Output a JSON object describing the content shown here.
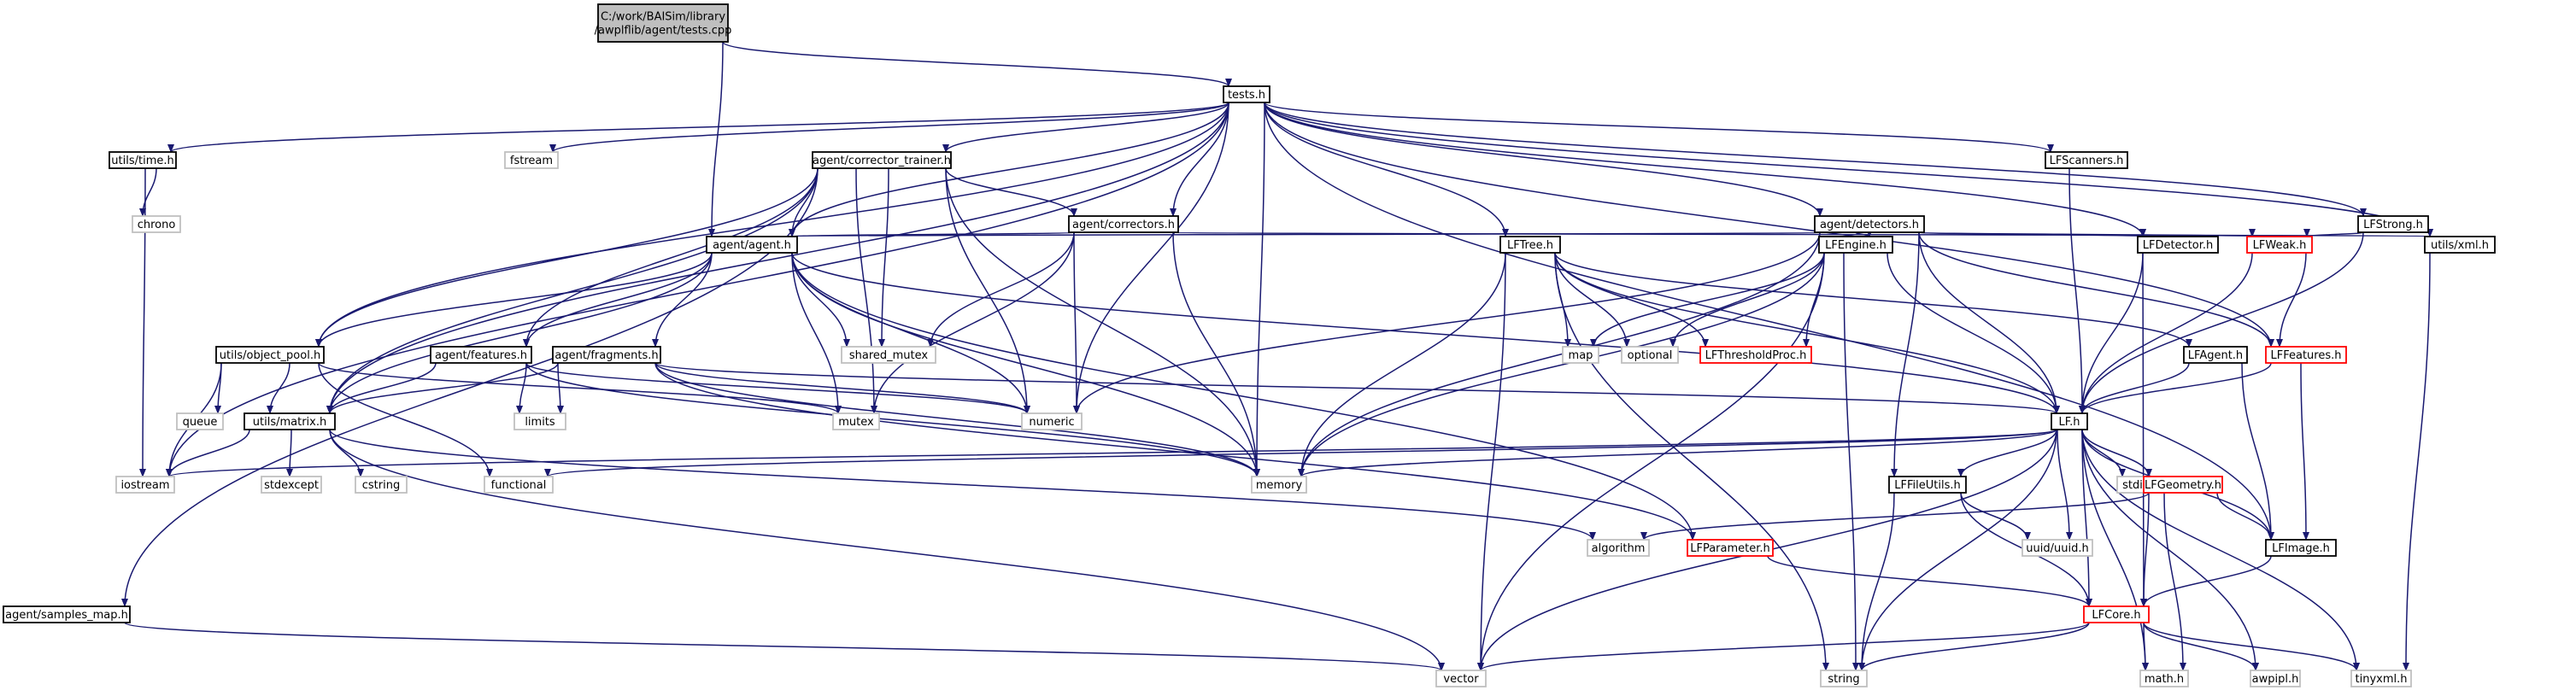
{
  "colors": {
    "edge": "#191970",
    "node_border": "#000000",
    "missing_border": "#c0c0c0",
    "incomplete_border": "#ff0000",
    "root_fill": "#bfbfbf",
    "fill": "#ffffff",
    "text": "#000000"
  },
  "nodes": [
    {
      "id": "root",
      "lines": [
        "C:/work/BAISim/library",
        "/awplflib/agent/tests.cpp"
      ],
      "style": "root"
    },
    {
      "id": "tests_h",
      "lines": [
        "tests.h"
      ],
      "style": "normal"
    },
    {
      "id": "utils_time",
      "lines": [
        "utils/time.h"
      ],
      "style": "normal"
    },
    {
      "id": "fstream",
      "lines": [
        "fstream"
      ],
      "style": "missing"
    },
    {
      "id": "corrector_trainer",
      "lines": [
        "agent/corrector_trainer.h"
      ],
      "style": "normal"
    },
    {
      "id": "lfscanners",
      "lines": [
        "LFScanners.h"
      ],
      "style": "normal"
    },
    {
      "id": "lfstrong",
      "lines": [
        "LFStrong.h"
      ],
      "style": "normal"
    },
    {
      "id": "chrono",
      "lines": [
        "chrono"
      ],
      "style": "missing"
    },
    {
      "id": "correctors",
      "lines": [
        "agent/correctors.h"
      ],
      "style": "normal"
    },
    {
      "id": "detectors",
      "lines": [
        "agent/detectors.h"
      ],
      "style": "normal"
    },
    {
      "id": "agent_h",
      "lines": [
        "agent/agent.h"
      ],
      "style": "normal"
    },
    {
      "id": "lftree",
      "lines": [
        "LFTree.h"
      ],
      "style": "normal"
    },
    {
      "id": "lfengine",
      "lines": [
        "LFEngine.h"
      ],
      "style": "normal"
    },
    {
      "id": "lfdetector",
      "lines": [
        "LFDetector.h"
      ],
      "style": "normal"
    },
    {
      "id": "lfweak",
      "lines": [
        "LFWeak.h"
      ],
      "style": "incomplete"
    },
    {
      "id": "utils_xml",
      "lines": [
        "utils/xml.h"
      ],
      "style": "normal"
    },
    {
      "id": "object_pool",
      "lines": [
        "utils/object_pool.h"
      ],
      "style": "normal"
    },
    {
      "id": "shared_mutex",
      "lines": [
        "shared_mutex"
      ],
      "style": "missing"
    },
    {
      "id": "map",
      "lines": [
        "map"
      ],
      "style": "missing"
    },
    {
      "id": "optional",
      "lines": [
        "optional"
      ],
      "style": "missing"
    },
    {
      "id": "lfthresholdproc",
      "lines": [
        "LFThresholdProc.h"
      ],
      "style": "incomplete"
    },
    {
      "id": "features",
      "lines": [
        "agent/features.h"
      ],
      "style": "normal"
    },
    {
      "id": "fragments",
      "lines": [
        "agent/fragments.h"
      ],
      "style": "normal"
    },
    {
      "id": "lfagent",
      "lines": [
        "LFAgent.h"
      ],
      "style": "normal"
    },
    {
      "id": "lffeatures",
      "lines": [
        "LFFeatures.h"
      ],
      "style": "incomplete"
    },
    {
      "id": "queue",
      "lines": [
        "queue"
      ],
      "style": "missing"
    },
    {
      "id": "matrix",
      "lines": [
        "utils/matrix.h"
      ],
      "style": "normal"
    },
    {
      "id": "limits",
      "lines": [
        "limits"
      ],
      "style": "missing"
    },
    {
      "id": "mutex",
      "lines": [
        "mutex"
      ],
      "style": "missing"
    },
    {
      "id": "numeric",
      "lines": [
        "numeric"
      ],
      "style": "missing"
    },
    {
      "id": "lf_h",
      "lines": [
        "LF.h"
      ],
      "style": "normal"
    },
    {
      "id": "iostream",
      "lines": [
        "iostream"
      ],
      "style": "missing"
    },
    {
      "id": "functional",
      "lines": [
        "functional"
      ],
      "style": "missing"
    },
    {
      "id": "memory",
      "lines": [
        "memory"
      ],
      "style": "missing"
    },
    {
      "id": "stdexcept",
      "lines": [
        "stdexcept"
      ],
      "style": "missing"
    },
    {
      "id": "cstring",
      "lines": [
        "cstring"
      ],
      "style": "missing"
    },
    {
      "id": "lffileutils",
      "lines": [
        "LFFileUtils.h"
      ],
      "style": "normal"
    },
    {
      "id": "stdio",
      "lines": [
        "stdio.h"
      ],
      "style": "missing"
    },
    {
      "id": "lfgeometry",
      "lines": [
        "LFGeometry.h"
      ],
      "style": "incomplete"
    },
    {
      "id": "algorithm",
      "lines": [
        "algorithm"
      ],
      "style": "missing"
    },
    {
      "id": "lfparameter",
      "lines": [
        "LFParameter.h"
      ],
      "style": "incomplete"
    },
    {
      "id": "uuid",
      "lines": [
        "uuid/uuid.h"
      ],
      "style": "missing"
    },
    {
      "id": "lfimage",
      "lines": [
        "LFImage.h"
      ],
      "style": "normal"
    },
    {
      "id": "samples_map",
      "lines": [
        "agent/samples_map.h"
      ],
      "style": "normal"
    },
    {
      "id": "lfcore",
      "lines": [
        "LFCore.h"
      ],
      "style": "incomplete"
    },
    {
      "id": "vector",
      "lines": [
        "vector"
      ],
      "style": "missing"
    },
    {
      "id": "string",
      "lines": [
        "string"
      ],
      "style": "missing"
    },
    {
      "id": "math",
      "lines": [
        "math.h"
      ],
      "style": "missing"
    },
    {
      "id": "awpipl",
      "lines": [
        "awpipl.h"
      ],
      "style": "missing"
    },
    {
      "id": "tinyxml",
      "lines": [
        "tinyxml.h"
      ],
      "style": "missing"
    }
  ],
  "edges": [
    [
      "root",
      "tests_h"
    ],
    [
      "root",
      "agent_h"
    ],
    [
      "tests_h",
      "utils_time"
    ],
    [
      "tests_h",
      "fstream"
    ],
    [
      "tests_h",
      "corrector_trainer"
    ],
    [
      "tests_h",
      "correctors"
    ],
    [
      "tests_h",
      "detectors"
    ],
    [
      "tests_h",
      "agent_h"
    ],
    [
      "tests_h",
      "lftree"
    ],
    [
      "tests_h",
      "lfscanners"
    ],
    [
      "tests_h",
      "lfstrong"
    ],
    [
      "tests_h",
      "lfdetector"
    ],
    [
      "tests_h",
      "utils_xml"
    ],
    [
      "tests_h",
      "object_pool"
    ],
    [
      "tests_h",
      "matrix"
    ],
    [
      "tests_h",
      "iostream"
    ],
    [
      "tests_h",
      "numeric"
    ],
    [
      "tests_h",
      "memory"
    ],
    [
      "tests_h",
      "lfimage"
    ],
    [
      "tests_h",
      "lffeatures"
    ],
    [
      "utils_time",
      "chrono"
    ],
    [
      "utils_time",
      "iostream"
    ],
    [
      "corrector_trainer",
      "correctors"
    ],
    [
      "corrector_trainer",
      "agent_h"
    ],
    [
      "corrector_trainer",
      "features"
    ],
    [
      "corrector_trainer",
      "shared_mutex"
    ],
    [
      "corrector_trainer",
      "mutex"
    ],
    [
      "corrector_trainer",
      "numeric"
    ],
    [
      "corrector_trainer",
      "memory"
    ],
    [
      "corrector_trainer",
      "object_pool"
    ],
    [
      "corrector_trainer",
      "matrix"
    ],
    [
      "corrector_trainer",
      "samples_map"
    ],
    [
      "correctors",
      "agent_h"
    ],
    [
      "correctors",
      "shared_mutex"
    ],
    [
      "correctors",
      "mutex"
    ],
    [
      "correctors",
      "numeric"
    ],
    [
      "correctors",
      "memory"
    ],
    [
      "correctors",
      "utils_xml"
    ],
    [
      "detectors",
      "agent_h"
    ],
    [
      "detectors",
      "lfengine"
    ],
    [
      "detectors",
      "lfdetector"
    ],
    [
      "detectors",
      "lfweak"
    ],
    [
      "detectors",
      "lf_h"
    ],
    [
      "detectors",
      "lffileutils"
    ],
    [
      "detectors",
      "memory"
    ],
    [
      "detectors",
      "numeric"
    ],
    [
      "detectors",
      "lffeatures"
    ],
    [
      "agent_h",
      "object_pool"
    ],
    [
      "agent_h",
      "features"
    ],
    [
      "agent_h",
      "fragments"
    ],
    [
      "agent_h",
      "shared_mutex"
    ],
    [
      "agent_h",
      "mutex"
    ],
    [
      "agent_h",
      "numeric"
    ],
    [
      "agent_h",
      "memory"
    ],
    [
      "agent_h",
      "matrix"
    ],
    [
      "agent_h",
      "lf_h"
    ],
    [
      "agent_h",
      "lfparameter"
    ],
    [
      "lftree",
      "map"
    ],
    [
      "lftree",
      "optional"
    ],
    [
      "lftree",
      "lfthresholdproc"
    ],
    [
      "lftree",
      "lfagent"
    ],
    [
      "lftree",
      "lf_h"
    ],
    [
      "lftree",
      "memory"
    ],
    [
      "lftree",
      "vector"
    ],
    [
      "lftree",
      "string"
    ],
    [
      "lfengine",
      "map"
    ],
    [
      "lfengine",
      "optional"
    ],
    [
      "lfengine",
      "lfthresholdproc"
    ],
    [
      "lfengine",
      "lf_h"
    ],
    [
      "lfengine",
      "memory"
    ],
    [
      "lfengine",
      "vector"
    ],
    [
      "lfengine",
      "string"
    ],
    [
      "lfscanners",
      "lf_h"
    ],
    [
      "lfstrong",
      "lfweak"
    ],
    [
      "lfstrong",
      "lf_h"
    ],
    [
      "lfdetector",
      "lf_h"
    ],
    [
      "lfdetector",
      "lfcore"
    ],
    [
      "lfweak",
      "lffeatures"
    ],
    [
      "lfweak",
      "lf_h"
    ],
    [
      "utils_xml",
      "tinyxml"
    ],
    [
      "object_pool",
      "queue"
    ],
    [
      "object_pool",
      "iostream"
    ],
    [
      "object_pool",
      "mutex"
    ],
    [
      "object_pool",
      "functional"
    ],
    [
      "object_pool",
      "matrix"
    ],
    [
      "features",
      "limits"
    ],
    [
      "features",
      "matrix"
    ],
    [
      "features",
      "numeric"
    ],
    [
      "features",
      "memory"
    ],
    [
      "fragments",
      "limits"
    ],
    [
      "fragments",
      "matrix"
    ],
    [
      "fragments",
      "numeric"
    ],
    [
      "fragments",
      "memory"
    ],
    [
      "fragments",
      "lf_h"
    ],
    [
      "fragments",
      "lfparameter"
    ],
    [
      "lfagent",
      "lf_h"
    ],
    [
      "lfagent",
      "lfimage"
    ],
    [
      "lffeatures",
      "lf_h"
    ],
    [
      "lffeatures",
      "lfimage"
    ],
    [
      "matrix",
      "iostream"
    ],
    [
      "matrix",
      "stdexcept"
    ],
    [
      "matrix",
      "cstring"
    ],
    [
      "matrix",
      "algorithm"
    ],
    [
      "matrix",
      "vector"
    ],
    [
      "lf_h",
      "iostream"
    ],
    [
      "lf_h",
      "functional"
    ],
    [
      "lf_h",
      "memory"
    ],
    [
      "lf_h",
      "lffileutils"
    ],
    [
      "lf_h",
      "stdio"
    ],
    [
      "lf_h",
      "lfgeometry"
    ],
    [
      "lf_h",
      "lfimage"
    ],
    [
      "lf_h",
      "lfcore"
    ],
    [
      "lf_h",
      "uuid"
    ],
    [
      "lf_h",
      "vector"
    ],
    [
      "lf_h",
      "string"
    ],
    [
      "lf_h",
      "math"
    ],
    [
      "lf_h",
      "awpipl"
    ],
    [
      "lf_h",
      "tinyxml"
    ],
    [
      "lffileutils",
      "uuid"
    ],
    [
      "lffileutils",
      "lfcore"
    ],
    [
      "lffileutils",
      "string"
    ],
    [
      "lfgeometry",
      "algorithm"
    ],
    [
      "lfgeometry",
      "lfimage"
    ],
    [
      "lfgeometry",
      "lfcore"
    ],
    [
      "lfgeometry",
      "math"
    ],
    [
      "lfparameter",
      "lfcore"
    ],
    [
      "lfimage",
      "lfcore"
    ],
    [
      "samples_map",
      "vector"
    ],
    [
      "lfcore",
      "vector"
    ],
    [
      "lfcore",
      "string"
    ],
    [
      "lfcore",
      "math"
    ],
    [
      "lfcore",
      "awpipl"
    ],
    [
      "lfcore",
      "tinyxml"
    ]
  ]
}
